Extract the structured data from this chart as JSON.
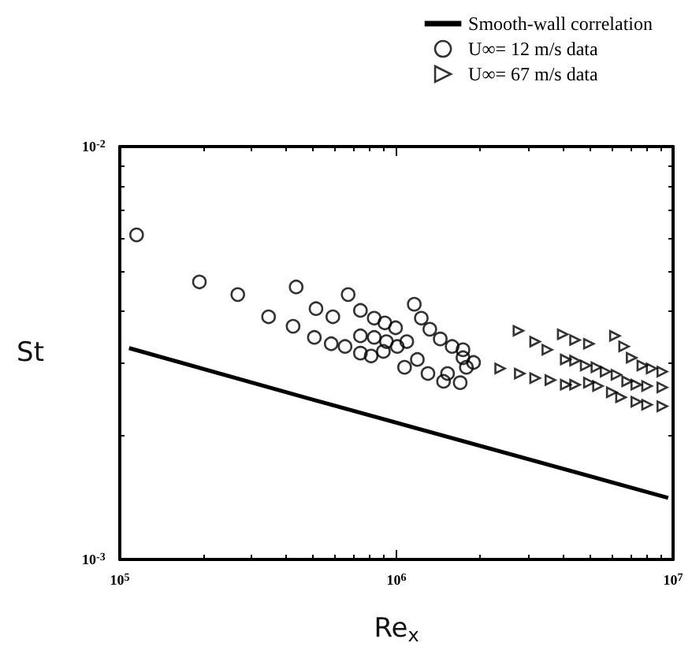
{
  "chart_data": {
    "type": "scatter",
    "xlabel": "Re$_{x}$",
    "ylabel": "St",
    "log": "xy",
    "legend": "top right",
    "grid": false,
    "xlim": [
      100000,
      10000000
    ],
    "xticks": [
      {
        "value": 100000,
        "label": "10$^{5}$"
      },
      {
        "value": 1000000,
        "label": "10$^{6}$"
      },
      {
        "value": 10000000,
        "label": "10$^{7}$"
      }
    ],
    "ylim": [
      0.001,
      0.01
    ],
    "yticks": [
      {
        "value": 0.001,
        "label": "10$^{-3}$"
      },
      {
        "value": 0.01,
        "label": "10$^{-2}$"
      }
    ],
    "series": [
      {
        "name": "Smooth-wall correlation",
        "type": "line",
        "marker": "none",
        "line_style": "solid",
        "color": "#000000",
        "x": [
          108000,
          486000,
          9600000
        ],
        "values": [
          0.00325,
          0.00245,
          0.00141
        ]
      },
      {
        "name": "U∞= 12 m/s data",
        "marker": "circle",
        "color": "#000000",
        "x": [
          115000,
          194000,
          267000,
          434000,
          345000,
          512000,
          423000,
          505000,
          581000,
          589000,
          669000,
          652000,
          741000,
          831000,
          908000,
          993000,
          741000,
          831000,
          920000,
          741000,
          810000,
          897000,
          1007000,
          1090000,
          1160000,
          1230000,
          1320000,
          1440000,
          1590000,
          1740000,
          1070000,
          1190000,
          1300000,
          1480000,
          1700000,
          1790000,
          1900000,
          1740000,
          1530000
        ],
        "values": [
          0.00611,
          0.0047,
          0.00438,
          0.00457,
          0.00387,
          0.00405,
          0.00367,
          0.00345,
          0.00333,
          0.00387,
          0.00438,
          0.00328,
          0.00401,
          0.00384,
          0.00374,
          0.00364,
          0.00348,
          0.00345,
          0.00337,
          0.00316,
          0.00311,
          0.00319,
          0.00328,
          0.00337,
          0.00415,
          0.00384,
          0.00361,
          0.00342,
          0.00328,
          0.00322,
          0.00292,
          0.00305,
          0.00282,
          0.0027,
          0.00268,
          0.00292,
          0.003,
          0.00308,
          0.00282
        ]
      },
      {
        "name": "U∞= 67 m/s data",
        "marker": "triangle",
        "color": "#000000",
        "x": [
          2760000,
          3170000,
          3510000,
          2370000,
          2790000,
          3170000,
          3600000,
          3990000,
          4420000,
          4960000,
          4090000,
          4420000,
          4830000,
          5280000,
          4090000,
          4420000,
          4960000,
          5350000,
          6160000,
          6650000,
          7080000,
          7740000,
          8360000,
          9140000,
          5700000,
          6240000,
          6820000,
          7360000,
          8050000,
          9140000,
          6000000,
          6480000,
          7360000,
          8050000,
          9140000
        ],
        "values": [
          0.00358,
          0.00337,
          0.00322,
          0.0029,
          0.00282,
          0.00275,
          0.00272,
          0.00351,
          0.0034,
          0.00333,
          0.00305,
          0.00303,
          0.00295,
          0.00292,
          0.00265,
          0.00265,
          0.00268,
          0.00263,
          0.00348,
          0.00328,
          0.00308,
          0.00295,
          0.0029,
          0.00285,
          0.00285,
          0.0028,
          0.0027,
          0.00265,
          0.00263,
          0.00261,
          0.00254,
          0.00247,
          0.00241,
          0.00237,
          0.00235
        ]
      }
    ]
  }
}
